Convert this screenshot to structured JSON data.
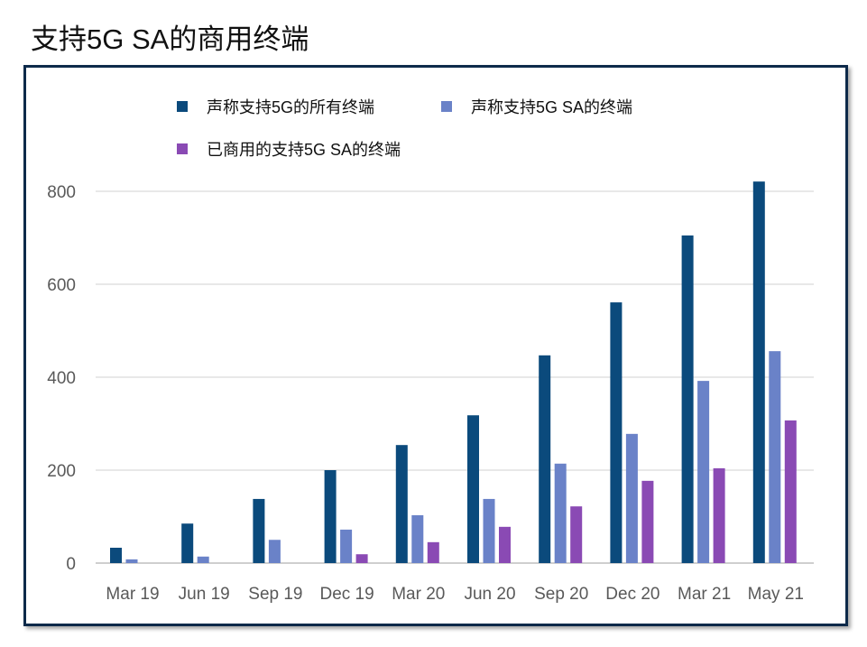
{
  "title": "支持5G SA的商用终端",
  "chart_data": {
    "type": "bar",
    "title": "支持5G SA的商用终端",
    "xlabel": "",
    "ylabel": "",
    "ylim": [
      0,
      800
    ],
    "yticks": [
      0,
      200,
      400,
      600,
      800
    ],
    "grid": true,
    "legend_position": "top",
    "categories": [
      "Mar 19",
      "Jun 19",
      "Sep 19",
      "Dec 19",
      "Mar 20",
      "Jun 20",
      "Sep 20",
      "Dec 20",
      "Mar 21",
      "May 21"
    ],
    "series": [
      {
        "name": "声称支持5G的所有终端",
        "color": "#0b4a7c",
        "values": [
          33,
          85,
          138,
          200,
          254,
          318,
          447,
          561,
          705,
          821
        ]
      },
      {
        "name": "声称支持5G SA的终端",
        "color": "#6a82c8",
        "values": [
          8,
          14,
          50,
          72,
          103,
          138,
          214,
          278,
          392,
          456
        ]
      },
      {
        "name": "已商用的支持5G SA的终端",
        "color": "#8a4ab4",
        "values": [
          0,
          0,
          0,
          19,
          45,
          78,
          122,
          177,
          204,
          307
        ]
      }
    ]
  }
}
